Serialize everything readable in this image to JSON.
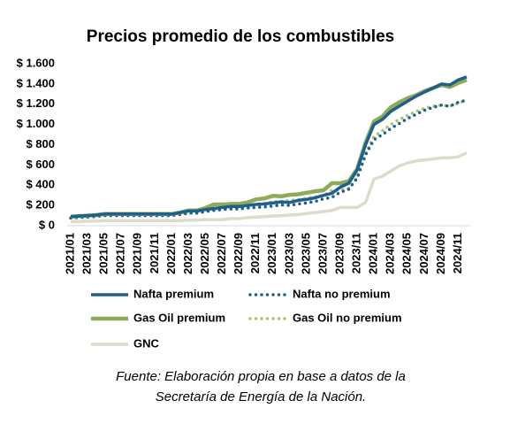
{
  "chart_data": {
    "type": "line",
    "title": "Precios promedio de los combustibles",
    "categories": [
      "2021/01",
      null,
      "2021/03",
      null,
      "2021/05",
      null,
      "2021/07",
      null,
      "2021/09",
      null,
      "2021/11",
      null,
      "2022/01",
      null,
      "2022/03",
      null,
      "2022/05",
      null,
      "2022/07",
      null,
      "2022/09",
      null,
      "2022/11",
      null,
      "2023/01",
      null,
      "2023/03",
      null,
      "2023/05",
      null,
      "2023/07",
      null,
      "2023/09",
      null,
      "2023/11",
      null,
      "2024/01",
      null,
      "2024/03",
      null,
      "2024/05",
      null,
      "2024/07",
      null,
      "2024/09",
      null,
      "2024/11",
      null
    ],
    "series": [
      {
        "name": "Nafta premium",
        "color": "#1f5f8b",
        "style": "solid",
        "values": [
          90,
          95,
          100,
          105,
          115,
          115,
          115,
          115,
          115,
          115,
          115,
          115,
          115,
          130,
          145,
          145,
          160,
          170,
          180,
          190,
          190,
          200,
          210,
          215,
          225,
          235,
          230,
          250,
          260,
          275,
          300,
          320,
          380,
          420,
          550,
          800,
          1000,
          1050,
          1130,
          1180,
          1230,
          1280,
          1320,
          1360,
          1400,
          1390,
          1440,
          1470
        ]
      },
      {
        "name": "Nafta no premium",
        "color": "#1f5f8b",
        "style": "dotted",
        "values": [
          75,
          80,
          85,
          90,
          100,
          100,
          100,
          100,
          100,
          100,
          100,
          100,
          100,
          110,
          125,
          125,
          140,
          150,
          160,
          165,
          165,
          175,
          180,
          185,
          195,
          205,
          200,
          215,
          225,
          240,
          265,
          280,
          330,
          360,
          470,
          700,
          850,
          900,
          960,
          1010,
          1060,
          1100,
          1140,
          1170,
          1190,
          1180,
          1220,
          1240
        ]
      },
      {
        "name": "Gas Oil premium",
        "color": "#8faa5a",
        "style": "solid",
        "values": [
          90,
          95,
          100,
          105,
          115,
          115,
          115,
          115,
          115,
          115,
          115,
          115,
          115,
          130,
          150,
          150,
          175,
          210,
          210,
          215,
          215,
          230,
          260,
          270,
          295,
          290,
          305,
          310,
          325,
          340,
          350,
          420,
          420,
          440,
          560,
          820,
          1030,
          1080,
          1170,
          1220,
          1260,
          1290,
          1330,
          1360,
          1390,
          1370,
          1410,
          1440
        ]
      },
      {
        "name": "Gas Oil no premium",
        "color": "#a9c46e",
        "style": "dotted",
        "values": [
          78,
          83,
          88,
          93,
          103,
          103,
          103,
          103,
          103,
          103,
          103,
          103,
          103,
          115,
          130,
          130,
          150,
          175,
          175,
          180,
          180,
          190,
          215,
          220,
          240,
          240,
          250,
          255,
          270,
          285,
          295,
          350,
          350,
          370,
          480,
          720,
          880,
          940,
          1000,
          1050,
          1090,
          1130,
          1160,
          1180,
          1190,
          1180,
          1210,
          1240
        ]
      },
      {
        "name": "GNC",
        "color": "#dcdccb",
        "style": "solid",
        "values": [
          40,
          40,
          45,
          45,
          50,
          50,
          50,
          50,
          50,
          50,
          50,
          50,
          50,
          50,
          55,
          55,
          60,
          60,
          60,
          70,
          70,
          80,
          85,
          90,
          95,
          100,
          105,
          110,
          120,
          130,
          140,
          150,
          180,
          180,
          180,
          230,
          460,
          490,
          540,
          590,
          620,
          640,
          650,
          660,
          670,
          670,
          680,
          720
        ]
      }
    ],
    "ylim": [
      0,
      1600
    ],
    "yticks": [
      {
        "value": 0,
        "label": "$ 0"
      },
      {
        "value": 200,
        "label": "$ 200"
      },
      {
        "value": 400,
        "label": "$ 400"
      },
      {
        "value": 600,
        "label": "$ 600"
      },
      {
        "value": 800,
        "label": "$ 800"
      },
      {
        "value": 1000,
        "label": "$ 1.000"
      },
      {
        "value": 1200,
        "label": "$ 1.200"
      },
      {
        "value": 1400,
        "label": "$ 1.400"
      },
      {
        "value": 1600,
        "label": "$ 1.600"
      }
    ],
    "grid": false,
    "note": [
      "Fuente: Elaboración propia en base a datos de la",
      "Secretaría de Energía de la Nación."
    ]
  }
}
